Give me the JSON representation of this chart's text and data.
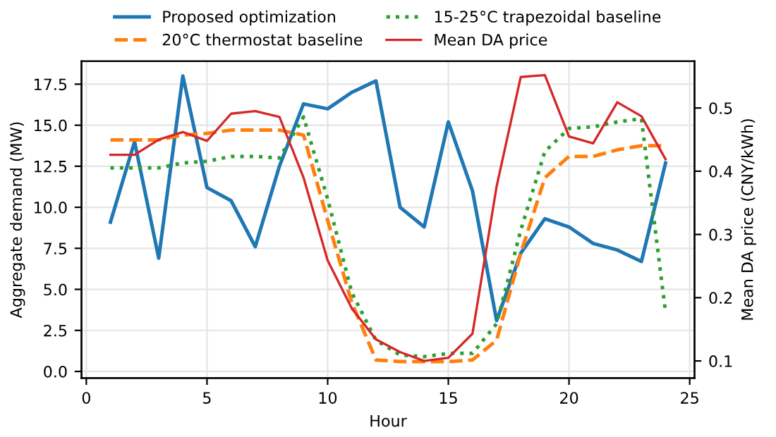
{
  "chart_data": {
    "type": "line",
    "xlabel": "Hour",
    "ylabel": "Aggregate demand (MW)",
    "y2label": "Mean DA price (CNY/kWh)",
    "x": [
      1,
      2,
      3,
      4,
      5,
      6,
      7,
      8,
      9,
      10,
      11,
      12,
      13,
      14,
      15,
      16,
      17,
      18,
      19,
      20,
      21,
      22,
      23,
      24
    ],
    "series": [
      {
        "name": "Proposed optimization",
        "color": "#1f77b4",
        "line_style": "solid",
        "values": [
          9.1,
          14.0,
          6.9,
          18.0,
          11.2,
          10.4,
          7.6,
          12.5,
          16.3,
          16.0,
          17.0,
          17.7,
          10.0,
          8.8,
          15.2,
          11.0,
          3.1,
          7.2,
          9.3,
          8.8,
          7.8,
          7.4,
          6.7,
          12.7
        ]
      },
      {
        "name": "20°C thermostat baseline",
        "color": "#ff7f0e",
        "line_style": "dashed",
        "values": [
          14.1,
          14.1,
          14.1,
          14.4,
          14.5,
          14.7,
          14.7,
          14.7,
          14.4,
          9.2,
          4.2,
          0.7,
          0.6,
          0.6,
          0.6,
          0.7,
          1.9,
          7.2,
          11.8,
          13.1,
          13.1,
          13.5,
          13.75,
          13.75
        ]
      },
      {
        "name": "15-25°C trapezoidal baseline",
        "color": "#2ca02c",
        "line_style": "dotted",
        "values": [
          12.4,
          12.4,
          12.4,
          12.7,
          12.8,
          13.1,
          13.1,
          13.0,
          15.5,
          10.5,
          4.8,
          1.9,
          1.0,
          0.9,
          1.1,
          1.1,
          2.9,
          8.6,
          13.4,
          14.8,
          14.9,
          15.2,
          15.4,
          3.6
        ]
      },
      {
        "name": "Mean DA price",
        "color": "#d62728",
        "line_style": "solid",
        "axis": "y2",
        "values": [
          0.426,
          0.426,
          0.45,
          0.462,
          0.448,
          0.491,
          0.495,
          0.486,
          0.39,
          0.259,
          0.183,
          0.134,
          0.114,
          0.1,
          0.105,
          0.143,
          0.376,
          0.549,
          0.552,
          0.455,
          0.444,
          0.509,
          0.487,
          0.419
        ]
      }
    ],
    "xlim": [
      -0.2,
      25.2
    ],
    "xticks": [
      0,
      5,
      10,
      15,
      20,
      25
    ],
    "ylim": [
      -0.4,
      18.9
    ],
    "yticks": [
      {
        "value": 0,
        "label": "0.0"
      },
      {
        "value": 2.5,
        "label": "2.5"
      },
      {
        "value": 5,
        "label": "5.0"
      },
      {
        "value": 7.5,
        "label": "7.5"
      },
      {
        "value": 10,
        "label": "10.0"
      },
      {
        "value": 12.5,
        "label": "12.5"
      },
      {
        "value": 15,
        "label": "15.0"
      },
      {
        "value": 17.5,
        "label": "17.5"
      }
    ],
    "y2lim": [
      0.073,
      0.574
    ],
    "y2ticks": [
      0.1,
      0.2,
      0.3,
      0.4,
      0.5
    ],
    "grid": true,
    "legend": "top"
  }
}
